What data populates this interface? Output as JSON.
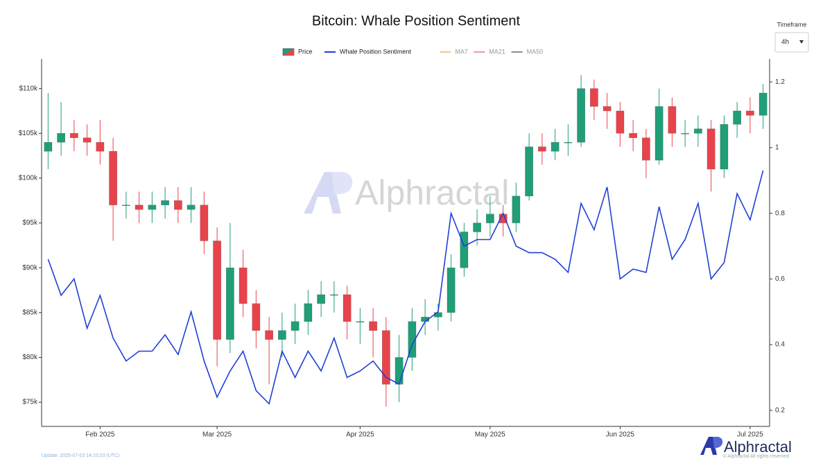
{
  "chart_data": {
    "type": "candlestick",
    "title": "Bitcoin: Whale Position Sentiment",
    "categories": [
      null,
      null,
      null,
      null,
      "Feb 2025",
      null,
      null,
      null,
      null,
      null,
      null,
      null,
      null,
      "Mar 2025",
      null,
      null,
      null,
      null,
      null,
      null,
      null,
      null,
      null,
      null,
      "Apr 2025",
      null,
      null,
      null,
      null,
      null,
      null,
      null,
      null,
      null,
      "May 2025",
      null,
      null,
      null,
      null,
      null,
      null,
      null,
      null,
      null,
      "Jun 2025",
      null,
      null,
      null,
      null,
      null,
      null,
      null,
      null,
      null,
      "Jul 2025",
      null
    ],
    "series": [
      {
        "name": "Price",
        "type": "candlestick",
        "up_color": "#1f9e77",
        "down_color": "#e8434b",
        "open": [
          103000,
          104000,
          105000,
          104500,
          104000,
          103000,
          97000,
          97000,
          96500,
          97000,
          97500,
          96500,
          97000,
          93000,
          82000,
          90000,
          86000,
          83000,
          82000,
          83000,
          84000,
          86000,
          87000,
          87000,
          84000,
          84000,
          83000,
          77000,
          80000,
          84000,
          84500,
          85000,
          90000,
          94000,
          95000,
          96000,
          95000,
          98000,
          103500,
          103000,
          104000,
          104000,
          110000,
          108000,
          107500,
          105000,
          104500,
          102000,
          108000,
          105000,
          105000,
          105500,
          101000,
          106000,
          107500,
          107000
        ],
        "high": [
          109500,
          108500,
          106500,
          106000,
          106500,
          104500,
          98500,
          98500,
          98500,
          99000,
          99000,
          99000,
          98500,
          94500,
          95000,
          92000,
          87500,
          84500,
          85000,
          86000,
          87500,
          88500,
          88500,
          88000,
          85500,
          85500,
          84500,
          82500,
          85500,
          86500,
          86000,
          91500,
          95000,
          96500,
          98000,
          97000,
          99500,
          105000,
          105000,
          105500,
          106000,
          111500,
          111000,
          109500,
          108500,
          106500,
          105500,
          110000,
          109000,
          106500,
          107000,
          106500,
          107000,
          108500,
          109000,
          110500
        ],
        "low": [
          101000,
          102500,
          103000,
          102500,
          101500,
          93000,
          95500,
          95000,
          95000,
          95500,
          95000,
          95000,
          91500,
          79000,
          80500,
          84500,
          81000,
          77000,
          80000,
          81500,
          82500,
          84500,
          85000,
          82000,
          81500,
          80000,
          74500,
          75000,
          78500,
          82500,
          83000,
          84000,
          89000,
          92500,
          93500,
          93500,
          94000,
          97500,
          101500,
          102000,
          102500,
          103500,
          106500,
          105500,
          103500,
          103000,
          100000,
          101500,
          103500,
          103500,
          103500,
          98500,
          100000,
          104500,
          105000,
          105500
        ],
        "close": [
          104000,
          105000,
          104500,
          104000,
          103000,
          97000,
          97000,
          96500,
          97000,
          97500,
          96500,
          97000,
          93000,
          82000,
          90000,
          86000,
          83000,
          82000,
          83000,
          84000,
          86000,
          87000,
          87000,
          84000,
          84000,
          83000,
          77000,
          80000,
          84000,
          84500,
          85000,
          90000,
          94000,
          95000,
          96000,
          95000,
          98000,
          103500,
          103000,
          104000,
          104000,
          110000,
          108000,
          107500,
          105000,
          104500,
          102000,
          108000,
          105000,
          105000,
          105500,
          101000,
          106000,
          107500,
          107000,
          109500
        ]
      },
      {
        "name": "Whale Position Sentiment",
        "type": "line",
        "color": "#1f3fd6",
        "axis": "y2",
        "values": [
          0.66,
          0.55,
          0.6,
          0.45,
          0.55,
          0.42,
          0.35,
          0.38,
          0.38,
          0.43,
          0.37,
          0.5,
          0.35,
          0.24,
          0.32,
          0.38,
          0.26,
          0.22,
          0.38,
          0.3,
          0.38,
          0.32,
          0.42,
          0.3,
          0.32,
          0.35,
          0.3,
          0.28,
          0.4,
          0.47,
          0.5,
          0.8,
          0.7,
          0.72,
          0.72,
          0.8,
          0.7,
          0.68,
          0.68,
          0.66,
          0.62,
          0.83,
          0.75,
          0.88,
          0.6,
          0.63,
          0.62,
          0.82,
          0.66,
          0.72,
          0.83,
          0.6,
          0.65,
          0.86,
          0.78,
          0.93
        ]
      }
    ],
    "hidden_series": [
      {
        "name": "MA7",
        "color": "#f2c48d"
      },
      {
        "name": "MA21",
        "color": "#ef9a9a"
      },
      {
        "name": "MA50",
        "color": "#8a8a8a"
      }
    ],
    "ylim": [
      72300,
      113300
    ],
    "yticks": [
      {
        "value": 75000,
        "label": "$75k"
      },
      {
        "value": 80000,
        "label": "$80k"
      },
      {
        "value": 85000,
        "label": "$85k"
      },
      {
        "value": 90000,
        "label": "$90k"
      },
      {
        "value": 95000,
        "label": "$95k"
      },
      {
        "value": 100000,
        "label": "$100k"
      },
      {
        "value": 105000,
        "label": "$105k"
      },
      {
        "value": 110000,
        "label": "$110k"
      }
    ],
    "y2lim": [
      0.151,
      1.27
    ],
    "y2ticks": [
      0.2,
      0.4,
      0.6,
      0.8,
      1,
      1.2
    ],
    "grid": false
  },
  "controls": {
    "timeframe_label": "Timeframe",
    "timeframe": "4h"
  },
  "watermark": "Alphractal",
  "footer": {
    "update": "Update: 2025-07-03 14:10:23 (UTC)",
    "brand": "Alphractal",
    "copyright": "© Alphractal All rights reserved"
  }
}
